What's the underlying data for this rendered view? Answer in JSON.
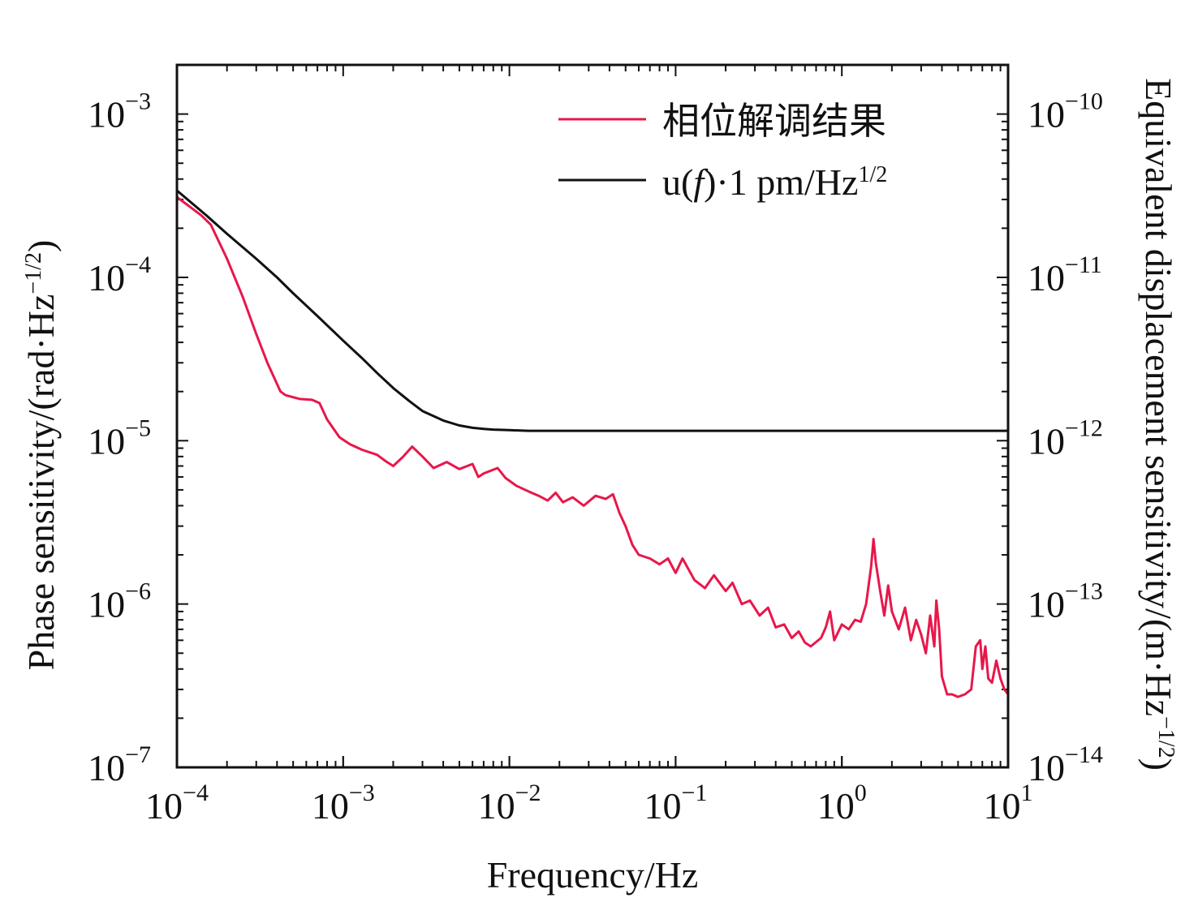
{
  "chart_data": {
    "type": "line",
    "x_scale": "log",
    "y_scale": "log",
    "xlabel": "Frequency/Hz",
    "ylabel": "Phase sensitivity/(rad·Hz",
    "ylabel_exp": "−1/2",
    "ylabel_end": ")",
    "y2label": "Equivalent displacement sensitivity/(m·Hz",
    "y2label_exp": "−1/2",
    "y2label_end": ")",
    "xlim": [
      0.0001,
      10
    ],
    "ylim": [
      1e-07,
      0.002
    ],
    "y2lim": [
      1e-14,
      2e-10
    ],
    "x_ticks": [
      {
        "value": 0.0001,
        "base": "10",
        "exp": "−4"
      },
      {
        "value": 0.001,
        "base": "10",
        "exp": "−3"
      },
      {
        "value": 0.01,
        "base": "10",
        "exp": "−2"
      },
      {
        "value": 0.1,
        "base": "10",
        "exp": "−1"
      },
      {
        "value": 1,
        "base": "10",
        "exp": "0"
      },
      {
        "value": 10,
        "base": "10",
        "exp": "1"
      }
    ],
    "y_ticks": [
      {
        "value": 1e-07,
        "base": "10",
        "exp": "−7"
      },
      {
        "value": 1e-06,
        "base": "10",
        "exp": "−6"
      },
      {
        "value": 1e-05,
        "base": "10",
        "exp": "−5"
      },
      {
        "value": 0.0001,
        "base": "10",
        "exp": "−4"
      },
      {
        "value": 0.001,
        "base": "10",
        "exp": "−3"
      }
    ],
    "y2_ticks": [
      {
        "value": 1e-14,
        "base": "10",
        "exp": "−14"
      },
      {
        "value": 1e-13,
        "base": "10",
        "exp": "−13"
      },
      {
        "value": 1e-12,
        "base": "10",
        "exp": "−12"
      },
      {
        "value": 1e-11,
        "base": "10",
        "exp": "−11"
      },
      {
        "value": 1e-10,
        "base": "10",
        "exp": "−10"
      }
    ],
    "legend_position": "top-right",
    "series": [
      {
        "name": "相位解调结果",
        "color": "#e8174a",
        "axis": "left",
        "x": [
          0.0001,
          0.00012,
          0.00014,
          0.00016,
          0.0002,
          0.00025,
          0.0003,
          0.00035,
          0.00042,
          0.00045,
          0.00055,
          0.00065,
          0.00072,
          0.0008,
          0.00095,
          0.0011,
          0.0013,
          0.0016,
          0.0018,
          0.002,
          0.0023,
          0.0026,
          0.003,
          0.0035,
          0.0042,
          0.005,
          0.006,
          0.0065,
          0.007,
          0.0085,
          0.0095,
          0.011,
          0.013,
          0.015,
          0.017,
          0.019,
          0.021,
          0.024,
          0.028,
          0.033,
          0.038,
          0.042,
          0.046,
          0.05,
          0.055,
          0.06,
          0.07,
          0.08,
          0.09,
          0.1,
          0.11,
          0.13,
          0.15,
          0.17,
          0.2,
          0.22,
          0.25,
          0.28,
          0.32,
          0.36,
          0.4,
          0.45,
          0.5,
          0.55,
          0.6,
          0.65,
          0.75,
          0.8,
          0.85,
          0.9,
          1.0,
          1.1,
          1.2,
          1.3,
          1.4,
          1.5,
          1.55,
          1.6,
          1.7,
          1.8,
          1.9,
          2.0,
          2.2,
          2.4,
          2.6,
          2.8,
          3.0,
          3.2,
          3.4,
          3.6,
          3.7,
          3.85,
          4.0,
          4.3,
          4.6,
          5.0,
          5.5,
          6.0,
          6.4,
          6.8,
          7.0,
          7.3,
          7.6,
          8.0,
          8.5,
          9.0,
          9.5,
          10
        ],
        "y": [
          0.00031,
          0.00027,
          0.00024,
          0.00021,
          0.00013,
          7.5e-05,
          4.5e-05,
          3e-05,
          2e-05,
          1.9e-05,
          1.8e-05,
          1.78e-05,
          1.7e-05,
          1.35e-05,
          1.05e-05,
          9.5e-06,
          8.8e-06,
          8.2e-06,
          7.5e-06,
          7e-06,
          8e-06,
          9.2e-06,
          8e-06,
          6.8e-06,
          7.4e-06,
          6.7e-06,
          7.2e-06,
          6e-06,
          6.3e-06,
          6.8e-06,
          5.9e-06,
          5.3e-06,
          4.9e-06,
          4.6e-06,
          4.3e-06,
          4.8e-06,
          4.2e-06,
          4.5e-06,
          4e-06,
          4.6e-06,
          4.4e-06,
          4.7e-06,
          3.6e-06,
          3e-06,
          2.3e-06,
          2e-06,
          1.9e-06,
          1.75e-06,
          1.9e-06,
          1.55e-06,
          1.9e-06,
          1.4e-06,
          1.25e-06,
          1.5e-06,
          1.2e-06,
          1.35e-06,
          1e-06,
          1.05e-06,
          8.5e-07,
          9.5e-07,
          7.2e-07,
          7.5e-07,
          6.2e-07,
          6.8e-07,
          5.8e-07,
          5.5e-07,
          6.2e-07,
          7.2e-07,
          9e-07,
          6e-07,
          7.5e-07,
          7e-07,
          8e-07,
          7.8e-07,
          1e-06,
          1.7e-06,
          2.5e-06,
          1.8e-06,
          1.2e-06,
          8.5e-07,
          1.3e-06,
          9e-07,
          7e-07,
          9.5e-07,
          6e-07,
          8e-07,
          6.5e-07,
          5e-07,
          8.5e-07,
          5.5e-07,
          1.05e-06,
          7e-07,
          3.6e-07,
          2.8e-07,
          2.8e-07,
          2.7e-07,
          2.8e-07,
          3e-07,
          5.5e-07,
          6e-07,
          4e-07,
          5.5e-07,
          3.5e-07,
          3.3e-07,
          4.5e-07,
          3.5e-07,
          3e-07,
          2.8e-07
        ]
      },
      {
        "name_prefix": "u(",
        "name_italic": "f",
        "name_mid": ")·1 pm/Hz",
        "name_exp": "1/2",
        "color": "#111111",
        "axis": "left",
        "x": [
          0.0001,
          0.00015,
          0.0002,
          0.0003,
          0.0004,
          0.0005,
          0.0007,
          0.001,
          0.0013,
          0.0016,
          0.002,
          0.0025,
          0.003,
          0.004,
          0.005,
          0.006,
          0.007,
          0.008,
          0.01,
          0.013,
          0.016,
          0.02,
          0.05,
          0.1,
          1,
          10
        ],
        "y": [
          0.00034,
          0.00024,
          0.000185,
          0.00013,
          0.0001,
          8e-05,
          5.8e-05,
          4.1e-05,
          3.2e-05,
          2.6e-05,
          2.1e-05,
          1.75e-05,
          1.52e-05,
          1.33e-05,
          1.24e-05,
          1.2e-05,
          1.18e-05,
          1.17e-05,
          1.16e-05,
          1.15e-05,
          1.15e-05,
          1.15e-05,
          1.15e-05,
          1.15e-05,
          1.15e-05,
          1.15e-05
        ]
      }
    ]
  }
}
